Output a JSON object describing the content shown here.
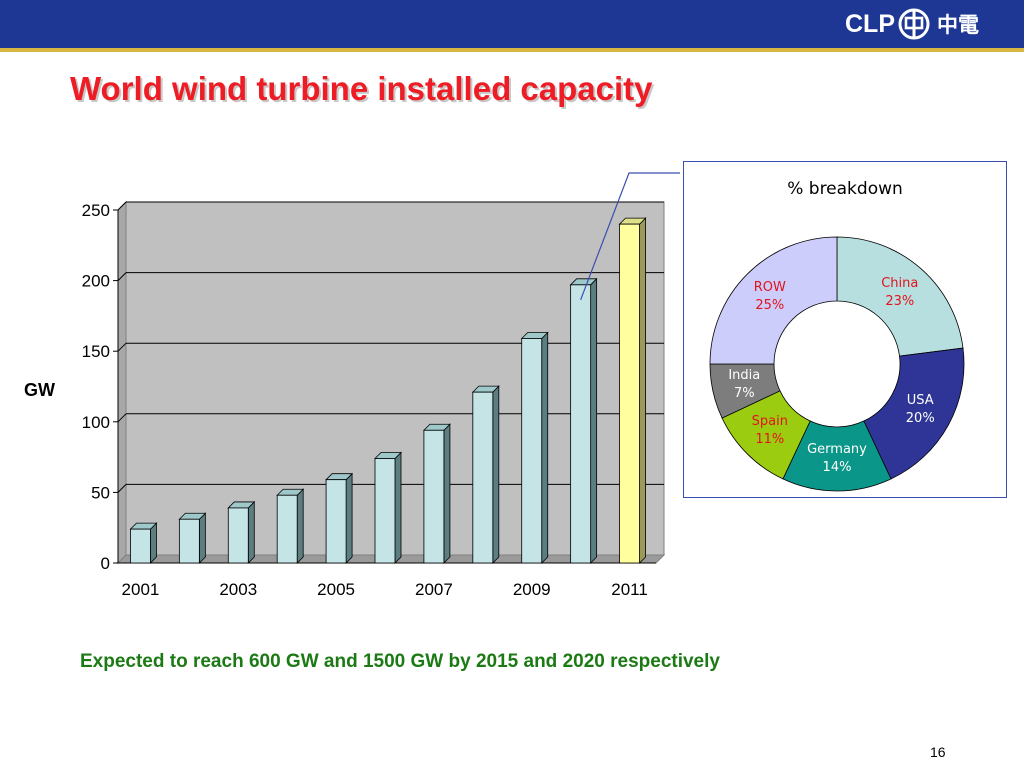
{
  "header": {
    "logo_text": "CLP",
    "logo_cn": "中電"
  },
  "slide": {
    "title": "World wind turbine installed capacity",
    "footnote": "Expected to reach 600 GW and 1500 GW by 2015 and 2020 respectively",
    "page_number": "16"
  },
  "colors": {
    "header_bar": "#1e3794",
    "header_rule": "#d8b642",
    "title": "#ee1c24",
    "footnote": "#1c7a14",
    "bar_fill": "#c4e4e6",
    "highlight_bar_fill": "#ffff9e",
    "plot_background": "#c0c0c0"
  },
  "chart_data": [
    {
      "type": "bar",
      "title": "",
      "xlabel": "",
      "ylabel": "GW",
      "categories": [
        "2001",
        "2002",
        "2003",
        "2004",
        "2005",
        "2006",
        "2007",
        "2008",
        "2009",
        "2010",
        "2011"
      ],
      "x_tick_labels": [
        "2001",
        "2003",
        "2005",
        "2007",
        "2009",
        "2011"
      ],
      "values": [
        24,
        31,
        39,
        48,
        59,
        74,
        94,
        121,
        159,
        197,
        240
      ],
      "highlight_category": "2011",
      "ylim": [
        0,
        250
      ],
      "y_ticks": [
        0,
        50,
        100,
        150,
        200,
        250
      ],
      "grid": true,
      "style": "3d"
    },
    {
      "type": "pie",
      "donut": true,
      "title": "% breakdown",
      "slices": [
        {
          "label": "China",
          "value": 23,
          "display": "23%",
          "color": "#b8dfe0",
          "text_color": "#e0141e"
        },
        {
          "label": "USA",
          "value": 20,
          "display": "20%",
          "color": "#2e3596",
          "text_color": "#ffffff"
        },
        {
          "label": "Germany",
          "value": 14,
          "display": "14%",
          "color": "#0a9688",
          "text_color": "#ffffff"
        },
        {
          "label": "Spain",
          "value": 11,
          "display": "11%",
          "color": "#9ccc10",
          "text_color": "#e0141e"
        },
        {
          "label": "India",
          "value": 7,
          "display": "7%",
          "color": "#7d7d7d",
          "text_color": "#ffffff"
        },
        {
          "label": "ROW",
          "value": 25,
          "display": "25%",
          "color": "#cdcdfb",
          "text_color": "#e0141e"
        }
      ]
    }
  ]
}
